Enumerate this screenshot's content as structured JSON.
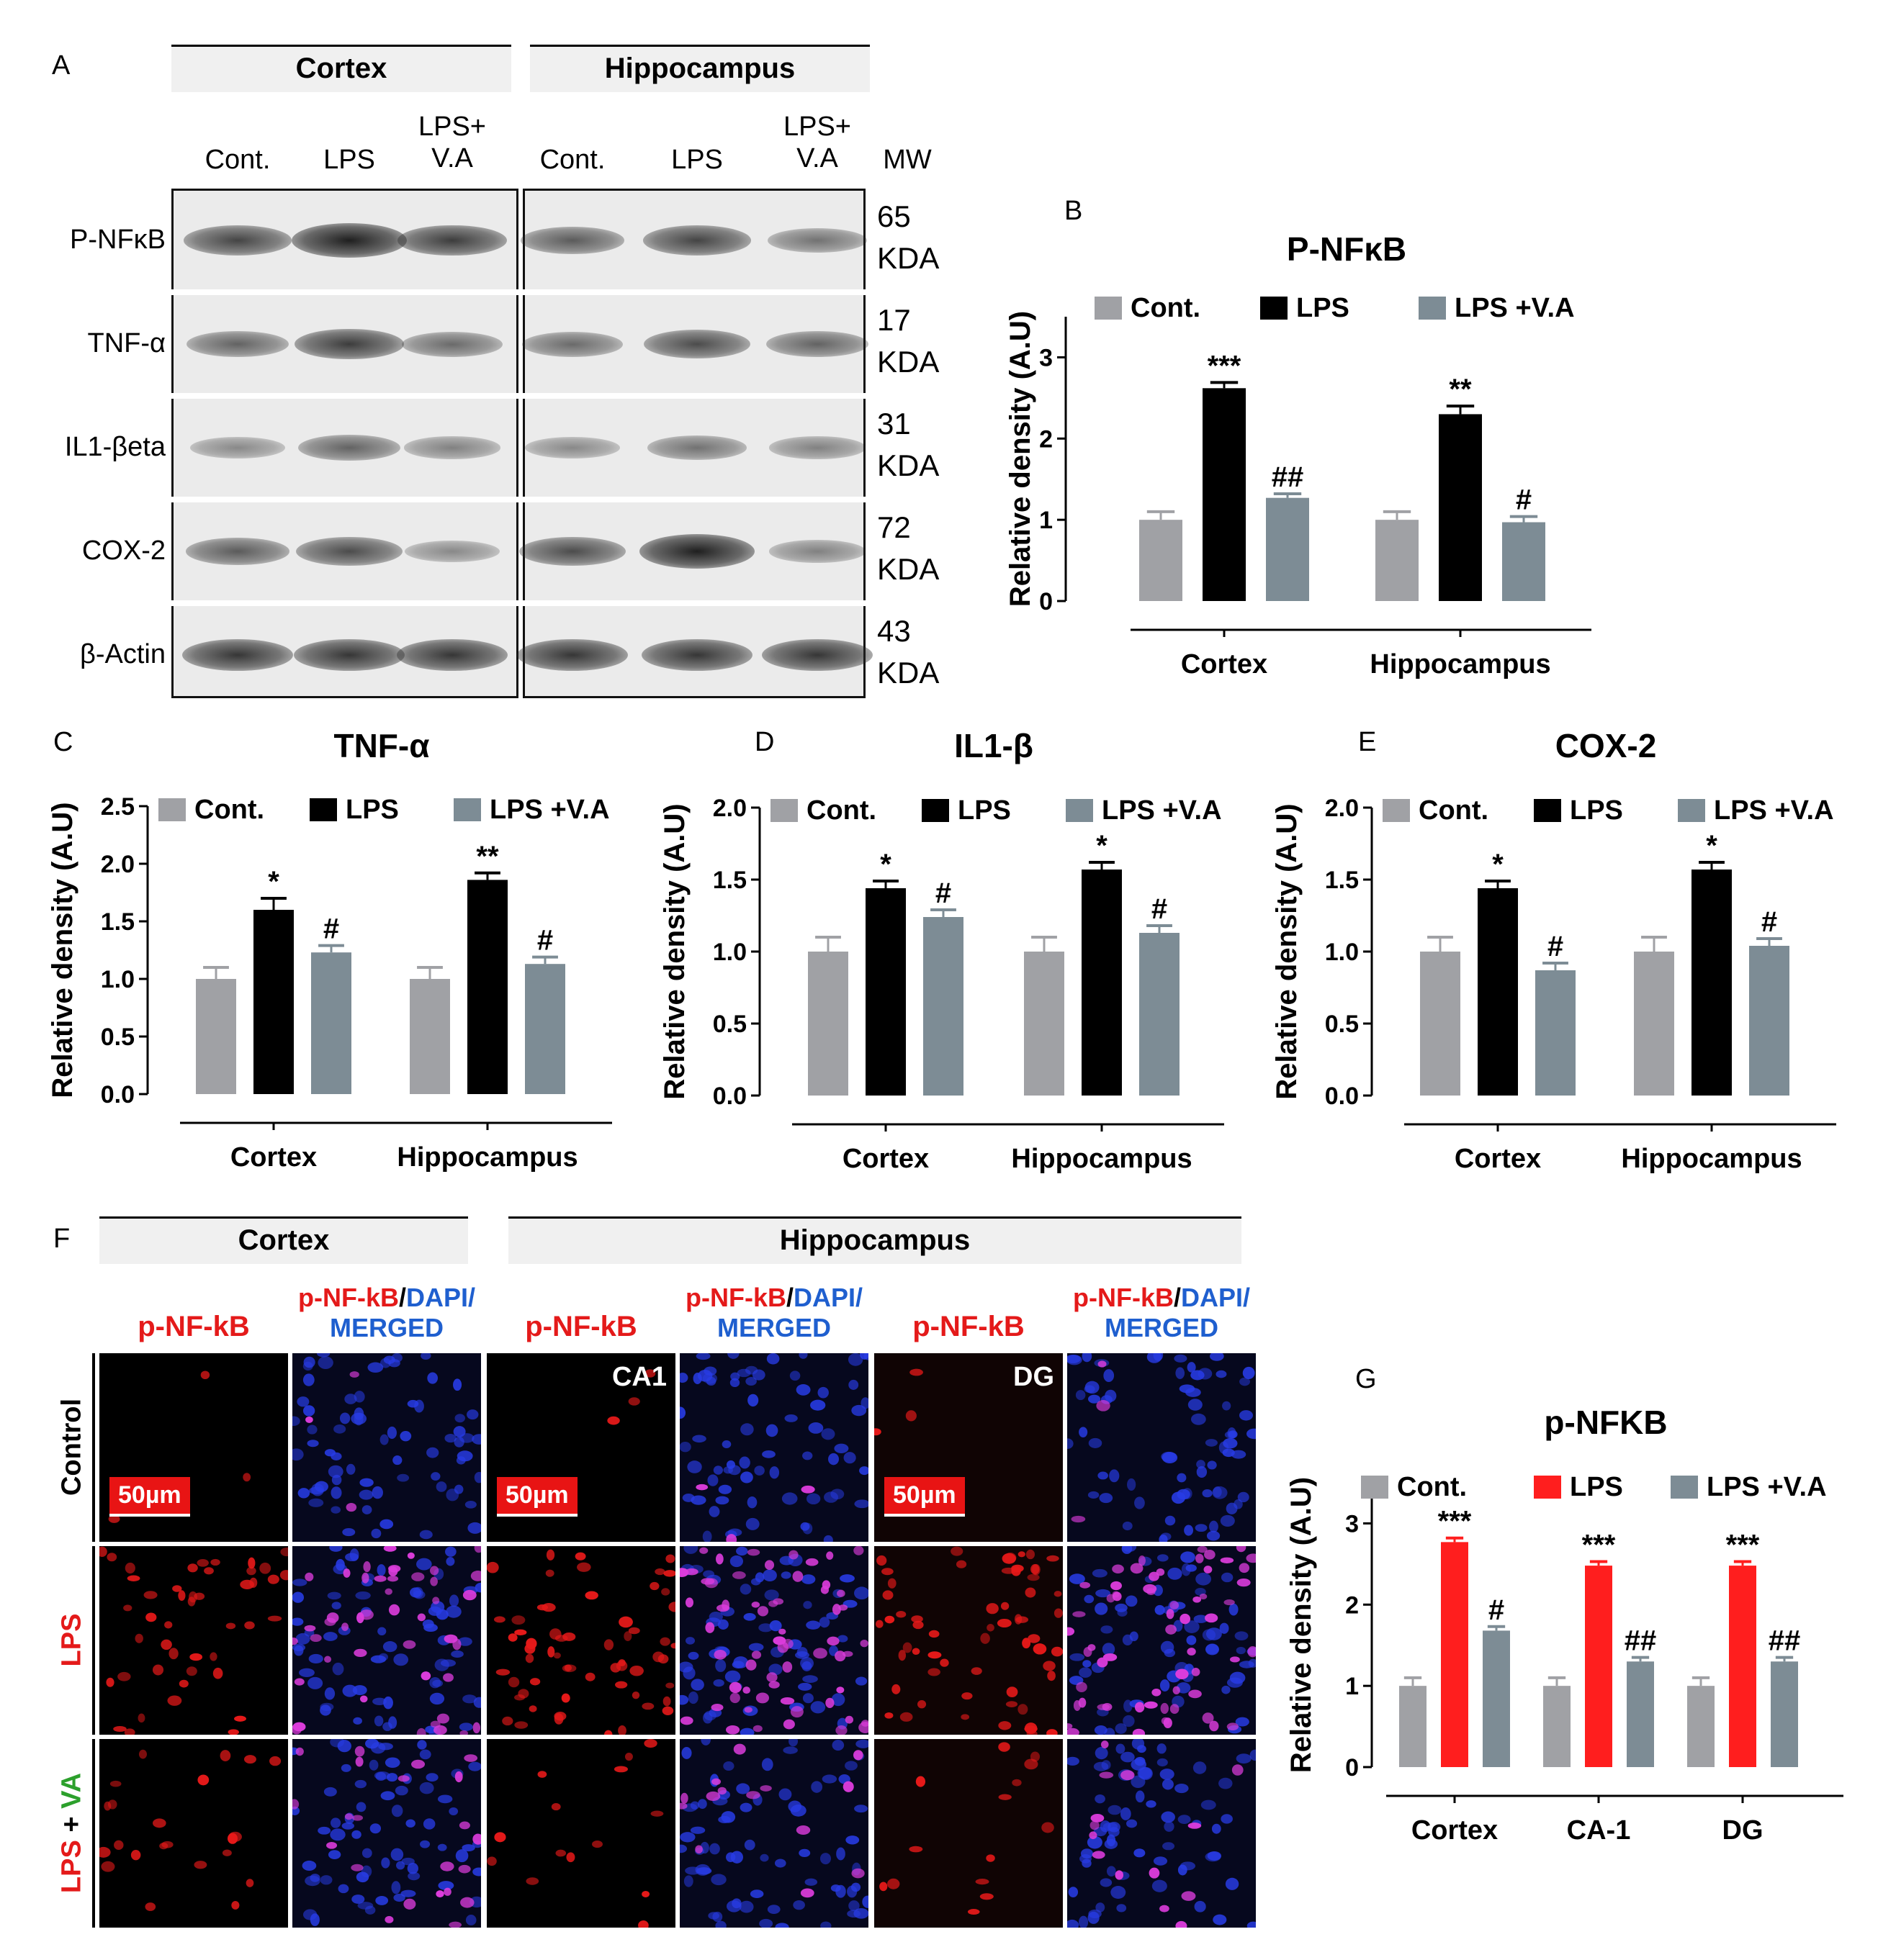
{
  "panel_labels": {
    "A": "A",
    "B": "B",
    "C": "C",
    "D": "D",
    "E": "E",
    "F": "F",
    "G": "G"
  },
  "western": {
    "regions": [
      "Cortex",
      "Hippocampus"
    ],
    "lanes": [
      "Cont.",
      "LPS",
      "LPS+\nV.A",
      "Cont.",
      "LPS",
      "LPS+\nV.A"
    ],
    "mw_header": "MW",
    "proteins": [
      {
        "name": "P-NFκB",
        "mw": "65\nKDA",
        "intensity": [
          0.75,
          1.0,
          0.8,
          0.6,
          0.75,
          0.45
        ]
      },
      {
        "name": "TNF-α",
        "mw": "17\nKDA",
        "intensity": [
          0.55,
          0.8,
          0.5,
          0.5,
          0.7,
          0.55
        ]
      },
      {
        "name": "IL1-βeta",
        "mw": "31\nKDA",
        "intensity": [
          0.3,
          0.55,
          0.35,
          0.3,
          0.45,
          0.35
        ]
      },
      {
        "name": "COX-2",
        "mw": "72\nKDA",
        "intensity": [
          0.6,
          0.7,
          0.3,
          0.7,
          1.0,
          0.35
        ]
      },
      {
        "name": "β-Actin",
        "mw": "43\nKDA",
        "intensity": [
          0.85,
          0.85,
          0.85,
          0.85,
          0.85,
          0.85
        ]
      }
    ]
  },
  "if_panel": {
    "regions": [
      "Cortex",
      "Hippocampus"
    ],
    "col_headers": [
      {
        "p1": "p-NF-kB"
      },
      {
        "p1": "p-NF-kB",
        "p2": "/",
        "p3": "DAPI/",
        "p4": "MERGED"
      },
      {
        "p1": "p-NF-kB"
      },
      {
        "p1": "p-NF-kB",
        "p2": "/",
        "p3": "DAPI/",
        "p4": "MERGED"
      },
      {
        "p1": "p-NF-kB"
      },
      {
        "p1": "p-NF-kB",
        "p2": "/",
        "p3": "DAPI/",
        "p4": "MERGED"
      }
    ],
    "rows": [
      {
        "a": "Control"
      },
      {
        "a": "LPS"
      },
      {
        "a": "LPS",
        "b": " + ",
        "c": "VA"
      }
    ],
    "scale_bar": "50µm",
    "subregion_labels": [
      "CA1",
      "DG"
    ]
  },
  "colors": {
    "cont": "#a0a1a5",
    "lps": "#000000",
    "va": "#7d8c95",
    "lps_red": "#ff1e1e",
    "g_cont": "#a0a1a5",
    "g_va": "#7d8c95"
  },
  "chart_data": [
    {
      "panel": "B",
      "type": "bar",
      "title": "P-NFκB",
      "ylabel": "Relative density (A.U)",
      "categories": [
        "Cortex",
        "Hippocampus"
      ],
      "ylim": [
        0,
        3.5
      ],
      "yticks": [
        0,
        1,
        2,
        3
      ],
      "series": [
        {
          "name": "Cont.",
          "values": [
            1.0,
            1.0
          ],
          "errors": [
            0.1,
            0.1
          ],
          "sig": [
            "",
            ""
          ]
        },
        {
          "name": "LPS",
          "values": [
            2.62,
            2.3
          ],
          "errors": [
            0.07,
            0.1
          ],
          "sig": [
            "***",
            "**"
          ]
        },
        {
          "name": "LPS +V.A",
          "values": [
            1.27,
            0.97
          ],
          "errors": [
            0.05,
            0.07
          ],
          "sig": [
            "##",
            "#"
          ]
        }
      ]
    },
    {
      "panel": "C",
      "type": "bar",
      "title": "TNF-α",
      "ylabel": "Relative density (A.U)",
      "categories": [
        "Cortex",
        "Hippocampus"
      ],
      "ylim": [
        0,
        2.5
      ],
      "yticks": [
        "0.0",
        "0.5",
        "1.0",
        "1.5",
        "2.0",
        "2.5"
      ],
      "series": [
        {
          "name": "Cont.",
          "values": [
            1.0,
            1.0
          ],
          "errors": [
            0.1,
            0.1
          ],
          "sig": [
            "",
            ""
          ]
        },
        {
          "name": "LPS",
          "values": [
            1.6,
            1.86
          ],
          "errors": [
            0.1,
            0.06
          ],
          "sig": [
            "*",
            "**"
          ]
        },
        {
          "name": "LPS +V.A",
          "values": [
            1.23,
            1.13
          ],
          "errors": [
            0.06,
            0.06
          ],
          "sig": [
            "#",
            "#"
          ]
        }
      ]
    },
    {
      "panel": "D",
      "type": "bar",
      "title": "IL1-β",
      "ylabel": "Relative density (A.U)",
      "categories": [
        "Cortex",
        "Hippocampus"
      ],
      "ylim": [
        0,
        2.0
      ],
      "yticks": [
        "0.0",
        "0.5",
        "1.0",
        "1.5",
        "2.0"
      ],
      "series": [
        {
          "name": "Cont.",
          "values": [
            1.0,
            1.0
          ],
          "errors": [
            0.1,
            0.1
          ],
          "sig": [
            "",
            ""
          ]
        },
        {
          "name": "LPS",
          "values": [
            1.44,
            1.57
          ],
          "errors": [
            0.05,
            0.05
          ],
          "sig": [
            "*",
            "*"
          ]
        },
        {
          "name": "LPS +V.A",
          "values": [
            1.24,
            1.13
          ],
          "errors": [
            0.05,
            0.05
          ],
          "sig": [
            "#",
            "#"
          ]
        }
      ]
    },
    {
      "panel": "E",
      "type": "bar",
      "title": "COX-2",
      "ylabel": "Relative density (A.U)",
      "categories": [
        "Cortex",
        "Hippocampus"
      ],
      "ylim": [
        0,
        2.0
      ],
      "yticks": [
        "0.0",
        "0.5",
        "1.0",
        "1.5",
        "2.0"
      ],
      "series": [
        {
          "name": "Cont.",
          "values": [
            1.0,
            1.0
          ],
          "errors": [
            0.1,
            0.1
          ],
          "sig": [
            "",
            ""
          ]
        },
        {
          "name": "LPS",
          "values": [
            1.44,
            1.57
          ],
          "errors": [
            0.05,
            0.05
          ],
          "sig": [
            "*",
            "*"
          ]
        },
        {
          "name": "LPS +V.A",
          "values": [
            0.87,
            1.04
          ],
          "errors": [
            0.05,
            0.05
          ],
          "sig": [
            "#",
            "#"
          ]
        }
      ]
    },
    {
      "panel": "G",
      "type": "bar",
      "title": "p-NFKB",
      "ylabel": "Relative density (A.U)",
      "categories": [
        "Cortex",
        "CA-1",
        "DG"
      ],
      "ylim": [
        0,
        3.5
      ],
      "yticks": [
        0,
        1,
        2,
        3
      ],
      "series": [
        {
          "name": "Cont.",
          "values": [
            1.0,
            1.0,
            1.0
          ],
          "errors": [
            0.1,
            0.1,
            0.1
          ],
          "sig": [
            "",
            "",
            ""
          ]
        },
        {
          "name": "LPS",
          "values": [
            2.77,
            2.48,
            2.48
          ],
          "errors": [
            0.05,
            0.05,
            0.05
          ],
          "sig": [
            "***",
            "***",
            "***"
          ]
        },
        {
          "name": "LPS +V.A",
          "values": [
            1.68,
            1.3,
            1.3
          ],
          "errors": [
            0.05,
            0.05,
            0.05
          ],
          "sig": [
            "#",
            "##",
            "##"
          ]
        }
      ]
    }
  ]
}
